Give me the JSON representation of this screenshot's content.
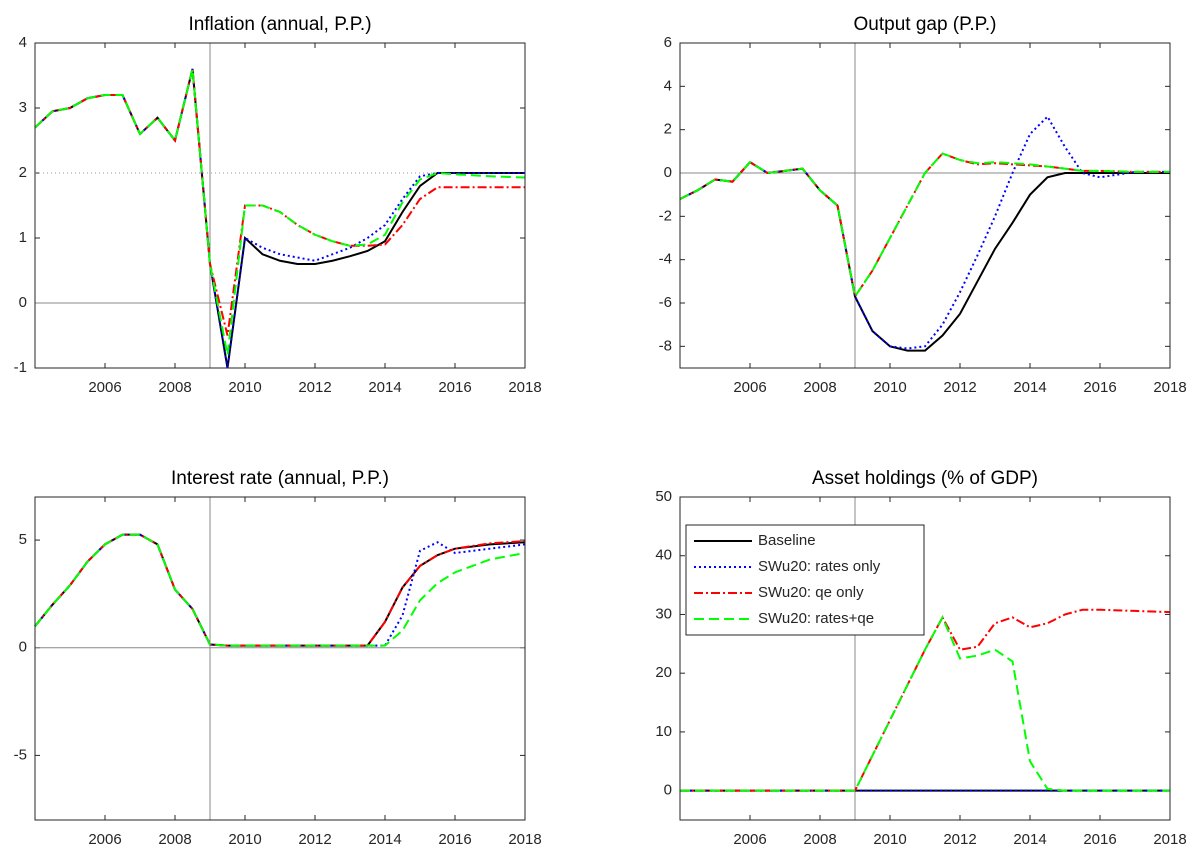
{
  "chart_data": [
    {
      "type": "line",
      "title": "Inflation (annual, P.P.)",
      "x": [
        2004,
        2004.5,
        2005,
        2005.5,
        2006,
        2006.5,
        2007,
        2007.5,
        2008,
        2008.5,
        2009,
        2009.5,
        2010,
        2010.5,
        2011,
        2011.5,
        2012,
        2012.5,
        2013,
        2013.5,
        2014,
        2014.5,
        2015,
        2015.5,
        2016,
        2017,
        2018
      ],
      "xlim": [
        2004,
        2018
      ],
      "xticks": [
        2006,
        2008,
        2010,
        2012,
        2014,
        2016,
        2018
      ],
      "ylim": [
        -1,
        4
      ],
      "yticks": [
        -1,
        0,
        1,
        2,
        3,
        4
      ],
      "hline": 0,
      "vline": 2009,
      "target": 2,
      "series": [
        {
          "color": "#000000",
          "dash": "solid",
          "values": [
            2.7,
            2.95,
            3.0,
            3.15,
            3.2,
            3.2,
            2.6,
            2.85,
            2.5,
            3.6,
            0.6,
            -1.0,
            1.0,
            0.75,
            0.65,
            0.6,
            0.6,
            0.65,
            0.72,
            0.8,
            0.95,
            1.4,
            1.8,
            2.0,
            2.0,
            2.0,
            2.0
          ]
        },
        {
          "color": "#0000ff",
          "dash": "dotted",
          "values": [
            2.7,
            2.95,
            3.0,
            3.15,
            3.2,
            3.2,
            2.6,
            2.85,
            2.5,
            3.6,
            0.6,
            -1.0,
            1.0,
            0.85,
            0.75,
            0.7,
            0.65,
            0.75,
            0.85,
            1.0,
            1.2,
            1.6,
            1.95,
            2.0,
            2.0,
            2.0,
            2.0
          ]
        },
        {
          "color": "#ff0000",
          "dash": "dashdot",
          "values": [
            2.7,
            2.95,
            3.0,
            3.15,
            3.2,
            3.2,
            2.6,
            2.85,
            2.5,
            3.6,
            0.6,
            -0.5,
            1.5,
            1.5,
            1.4,
            1.2,
            1.05,
            0.95,
            0.88,
            0.88,
            0.9,
            1.2,
            1.6,
            1.78,
            1.78,
            1.78,
            1.78
          ]
        },
        {
          "color": "#00ff00",
          "dash": "dashed",
          "values": [
            2.7,
            2.95,
            3.0,
            3.15,
            3.2,
            3.2,
            2.6,
            2.85,
            2.5,
            3.6,
            0.6,
            -0.8,
            1.5,
            1.5,
            1.4,
            1.2,
            1.05,
            0.95,
            0.88,
            0.9,
            1.05,
            1.55,
            1.9,
            2.0,
            1.98,
            1.95,
            1.93
          ]
        }
      ]
    },
    {
      "type": "line",
      "title": "Output gap (P.P.)",
      "x": [
        2004,
        2004.5,
        2005,
        2005.5,
        2006,
        2006.5,
        2007,
        2007.5,
        2008,
        2008.5,
        2009,
        2009.5,
        2010,
        2010.5,
        2011,
        2011.5,
        2012,
        2012.5,
        2013,
        2013.5,
        2014,
        2014.5,
        2015,
        2015.5,
        2016,
        2017,
        2018
      ],
      "xlim": [
        2004,
        2018
      ],
      "xticks": [
        2006,
        2008,
        2010,
        2012,
        2014,
        2016,
        2018
      ],
      "ylim": [
        -9,
        6
      ],
      "yticks": [
        -8,
        -6,
        -4,
        -2,
        0,
        2,
        4,
        6
      ],
      "hline": 0,
      "vline": 2009,
      "series": [
        {
          "color": "#000000",
          "dash": "solid",
          "values": [
            -1.2,
            -0.8,
            -0.3,
            -0.4,
            0.5,
            0.0,
            0.1,
            0.2,
            -0.8,
            -1.5,
            -5.7,
            -7.3,
            -8.0,
            -8.2,
            -8.2,
            -7.5,
            -6.5,
            -5.0,
            -3.5,
            -2.3,
            -1.0,
            -0.2,
            0.0,
            0.0,
            0.0,
            0.0,
            0.0
          ]
        },
        {
          "color": "#0000ff",
          "dash": "dotted",
          "values": [
            -1.2,
            -0.8,
            -0.3,
            -0.4,
            0.5,
            0.0,
            0.1,
            0.2,
            -0.8,
            -1.5,
            -5.7,
            -7.3,
            -8.0,
            -8.1,
            -8.0,
            -7.0,
            -5.5,
            -3.8,
            -2.0,
            0.0,
            1.8,
            2.6,
            1.2,
            0.0,
            -0.2,
            0.05,
            0.05
          ]
        },
        {
          "color": "#ff0000",
          "dash": "dashdot",
          "values": [
            -1.2,
            -0.8,
            -0.3,
            -0.4,
            0.5,
            0.0,
            0.1,
            0.2,
            -0.8,
            -1.5,
            -5.7,
            -4.5,
            -3.0,
            -1.5,
            0.0,
            0.9,
            0.6,
            0.4,
            0.45,
            0.4,
            0.35,
            0.3,
            0.2,
            0.1,
            0.1,
            0.05,
            0.05
          ]
        },
        {
          "color": "#00ff00",
          "dash": "dashed",
          "values": [
            -1.2,
            -0.8,
            -0.3,
            -0.4,
            0.5,
            0.0,
            0.1,
            0.2,
            -0.8,
            -1.5,
            -5.7,
            -4.5,
            -3.0,
            -1.5,
            0.0,
            0.9,
            0.6,
            0.45,
            0.5,
            0.45,
            0.4,
            0.3,
            0.2,
            0.1,
            0.1,
            0.05,
            0.05
          ]
        }
      ]
    },
    {
      "type": "line",
      "title": "Interest rate (annual, P.P.)",
      "x": [
        2004,
        2004.5,
        2005,
        2005.5,
        2006,
        2006.5,
        2007,
        2007.5,
        2008,
        2008.5,
        2009,
        2009.5,
        2010,
        2010.5,
        2011,
        2011.5,
        2012,
        2012.5,
        2013,
        2013.5,
        2014,
        2014.5,
        2015,
        2015.5,
        2016,
        2017,
        2018
      ],
      "xlim": [
        2004,
        2018
      ],
      "xticks": [
        2006,
        2008,
        2010,
        2012,
        2014,
        2016,
        2018
      ],
      "ylim": [
        -8,
        7
      ],
      "yticks": [
        -5,
        0,
        5
      ],
      "hline": 0,
      "vline": 2009,
      "series": [
        {
          "color": "#000000",
          "dash": "solid",
          "values": [
            1.0,
            2.0,
            2.9,
            4.0,
            4.8,
            5.25,
            5.25,
            4.8,
            2.7,
            1.8,
            0.15,
            0.1,
            0.1,
            0.1,
            0.1,
            0.1,
            0.1,
            0.1,
            0.1,
            0.1,
            1.2,
            2.8,
            3.8,
            4.3,
            4.6,
            4.8,
            4.9
          ]
        },
        {
          "color": "#0000ff",
          "dash": "dotted",
          "values": [
            1.0,
            2.0,
            2.9,
            4.0,
            4.8,
            5.25,
            5.25,
            4.8,
            2.7,
            1.8,
            0.15,
            0.1,
            0.1,
            0.1,
            0.1,
            0.1,
            0.1,
            0.1,
            0.1,
            0.1,
            0.1,
            1.5,
            4.5,
            4.9,
            4.4,
            4.6,
            4.8
          ]
        },
        {
          "color": "#ff0000",
          "dash": "dashdot",
          "values": [
            1.0,
            2.0,
            2.9,
            4.0,
            4.8,
            5.25,
            5.25,
            4.8,
            2.7,
            1.8,
            0.15,
            0.1,
            0.1,
            0.1,
            0.1,
            0.1,
            0.1,
            0.1,
            0.1,
            0.1,
            1.2,
            2.8,
            3.8,
            4.3,
            4.6,
            4.85,
            4.95
          ]
        },
        {
          "color": "#00ff00",
          "dash": "dashed",
          "values": [
            1.0,
            2.0,
            2.9,
            4.0,
            4.8,
            5.25,
            5.25,
            4.8,
            2.7,
            1.8,
            0.15,
            0.1,
            0.1,
            0.1,
            0.1,
            0.1,
            0.1,
            0.1,
            0.1,
            0.1,
            0.1,
            0.8,
            2.2,
            3.0,
            3.5,
            4.1,
            4.4
          ]
        }
      ]
    },
    {
      "type": "line",
      "title": "Asset holdings (% of GDP)",
      "x": [
        2004,
        2004.5,
        2005,
        2005.5,
        2006,
        2006.5,
        2007,
        2007.5,
        2008,
        2008.5,
        2009,
        2009.5,
        2010,
        2010.5,
        2011,
        2011.5,
        2012,
        2012.5,
        2013,
        2013.5,
        2014,
        2014.5,
        2015,
        2015.5,
        2016,
        2017,
        2018
      ],
      "xlim": [
        2004,
        2018
      ],
      "xticks": [
        2006,
        2008,
        2010,
        2012,
        2014,
        2016,
        2018
      ],
      "ylim": [
        -5,
        50
      ],
      "yticks": [
        0,
        10,
        20,
        30,
        40,
        50
      ],
      "hline": 0,
      "vline": 2009,
      "legend": "upper left",
      "series": [
        {
          "name": "Baseline",
          "color": "#000000",
          "dash": "solid",
          "values": [
            0,
            0,
            0,
            0,
            0,
            0,
            0,
            0,
            0,
            0,
            0,
            0,
            0,
            0,
            0,
            0,
            0,
            0,
            0,
            0,
            0,
            0,
            0,
            0,
            0,
            0,
            0
          ]
        },
        {
          "name": "SWu20: rates only",
          "color": "#0000ff",
          "dash": "dotted",
          "values": [
            0,
            0,
            0,
            0,
            0,
            0,
            0,
            0,
            0,
            0,
            0,
            0,
            0,
            0,
            0,
            0,
            0,
            0,
            0,
            0,
            0,
            0,
            0,
            0,
            0,
            0,
            0
          ]
        },
        {
          "name": "SWu20: qe only",
          "color": "#ff0000",
          "dash": "dashdot",
          "values": [
            0,
            0,
            0,
            0,
            0,
            0,
            0,
            0,
            0,
            0,
            0,
            6,
            12,
            18,
            24,
            29.5,
            24,
            24.5,
            28.5,
            29.5,
            27.8,
            28.5,
            30,
            30.8,
            30.8,
            30.6,
            30.4
          ]
        },
        {
          "name": "SWu20: rates+qe",
          "color": "#00ff00",
          "dash": "dashed",
          "values": [
            0,
            0,
            0,
            0,
            0,
            0,
            0,
            0,
            0,
            0,
            0,
            6,
            12,
            18,
            24,
            29.5,
            22.5,
            23,
            24,
            22,
            5,
            0.3,
            0,
            0,
            0,
            0,
            0
          ]
        }
      ]
    }
  ]
}
